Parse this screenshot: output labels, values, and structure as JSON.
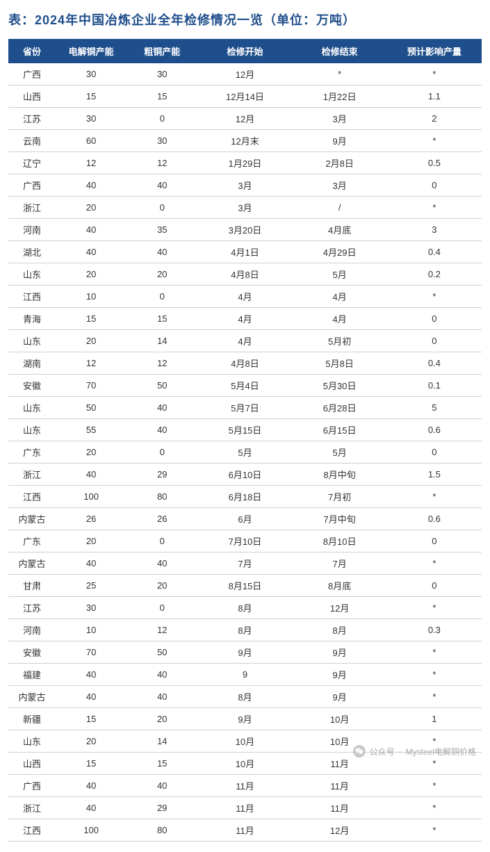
{
  "title": "表：2024年中国冶炼企业全年检修情况一览（单位：万吨）",
  "table": {
    "columns": [
      "省份",
      "电解铜产能",
      "粗铜产能",
      "检修开始",
      "检修结束",
      "预计影响产量"
    ],
    "header_bg": "#1f4e8c",
    "header_color": "#ffffff",
    "border_color": "#d0d0d0",
    "text_color": "#333333",
    "title_color": "#1f4e8c",
    "rows": [
      [
        "广西",
        "30",
        "30",
        "12月",
        "*",
        "*"
      ],
      [
        "山西",
        "15",
        "15",
        "12月14日",
        "1月22日",
        "1.1"
      ],
      [
        "江苏",
        "30",
        "0",
        "12月",
        "3月",
        "2"
      ],
      [
        "云南",
        "60",
        "30",
        "12月末",
        "9月",
        "*"
      ],
      [
        "辽宁",
        "12",
        "12",
        "1月29日",
        "2月8日",
        "0.5"
      ],
      [
        "广西",
        "40",
        "40",
        "3月",
        "3月",
        "0"
      ],
      [
        "浙江",
        "20",
        "0",
        "3月",
        "/",
        "*"
      ],
      [
        "河南",
        "40",
        "35",
        "3月20日",
        "4月底",
        "3"
      ],
      [
        "湖北",
        "40",
        "40",
        "4月1日",
        "4月29日",
        "0.4"
      ],
      [
        "山东",
        "20",
        "20",
        "4月8日",
        "5月",
        "0.2"
      ],
      [
        "江西",
        "10",
        "0",
        "4月",
        "4月",
        "*"
      ],
      [
        "青海",
        "15",
        "15",
        "4月",
        "4月",
        "0"
      ],
      [
        "山东",
        "20",
        "14",
        "4月",
        "5月初",
        "0"
      ],
      [
        "湖南",
        "12",
        "12",
        "4月8日",
        "5月8日",
        "0.4"
      ],
      [
        "安徽",
        "70",
        "50",
        "5月4日",
        "5月30日",
        "0.1"
      ],
      [
        "山东",
        "50",
        "40",
        "5月7日",
        "6月28日",
        "5"
      ],
      [
        "山东",
        "55",
        "40",
        "5月15日",
        "6月15日",
        "0.6"
      ],
      [
        "广东",
        "20",
        "0",
        "5月",
        "5月",
        "0"
      ],
      [
        "浙江",
        "40",
        "29",
        "6月10日",
        "8月中旬",
        "1.5"
      ],
      [
        "江西",
        "100",
        "80",
        "6月18日",
        "7月初",
        "*"
      ],
      [
        "内蒙古",
        "26",
        "26",
        "6月",
        "7月中旬",
        "0.6"
      ],
      [
        "广东",
        "20",
        "0",
        "7月10日",
        "8月10日",
        "0"
      ],
      [
        "内蒙古",
        "40",
        "40",
        "7月",
        "7月",
        "*"
      ],
      [
        "甘肃",
        "25",
        "20",
        "8月15日",
        "8月底",
        "0"
      ],
      [
        "江苏",
        "30",
        "0",
        "8月",
        "12月",
        "*"
      ],
      [
        "河南",
        "10",
        "12",
        "8月",
        "8月",
        "0.3"
      ],
      [
        "安徽",
        "70",
        "50",
        "9月",
        "9月",
        "*"
      ],
      [
        "福建",
        "40",
        "40",
        "9",
        "9月",
        "*"
      ],
      [
        "内蒙古",
        "40",
        "40",
        "8月",
        "9月",
        "*"
      ],
      [
        "新疆",
        "15",
        "20",
        "9月",
        "10月",
        "1"
      ],
      [
        "山东",
        "20",
        "14",
        "10月",
        "10月",
        "*"
      ],
      [
        "山西",
        "15",
        "15",
        "10月",
        "11月",
        "*"
      ],
      [
        "广西",
        "40",
        "40",
        "11月",
        "11月",
        "*"
      ],
      [
        "浙江",
        "40",
        "29",
        "11月",
        "11月",
        "*"
      ],
      [
        "江西",
        "100",
        "80",
        "11月",
        "12月",
        "*"
      ]
    ]
  },
  "watermark": {
    "label": "公众号",
    "text": "Mysteel电解铜价格"
  }
}
